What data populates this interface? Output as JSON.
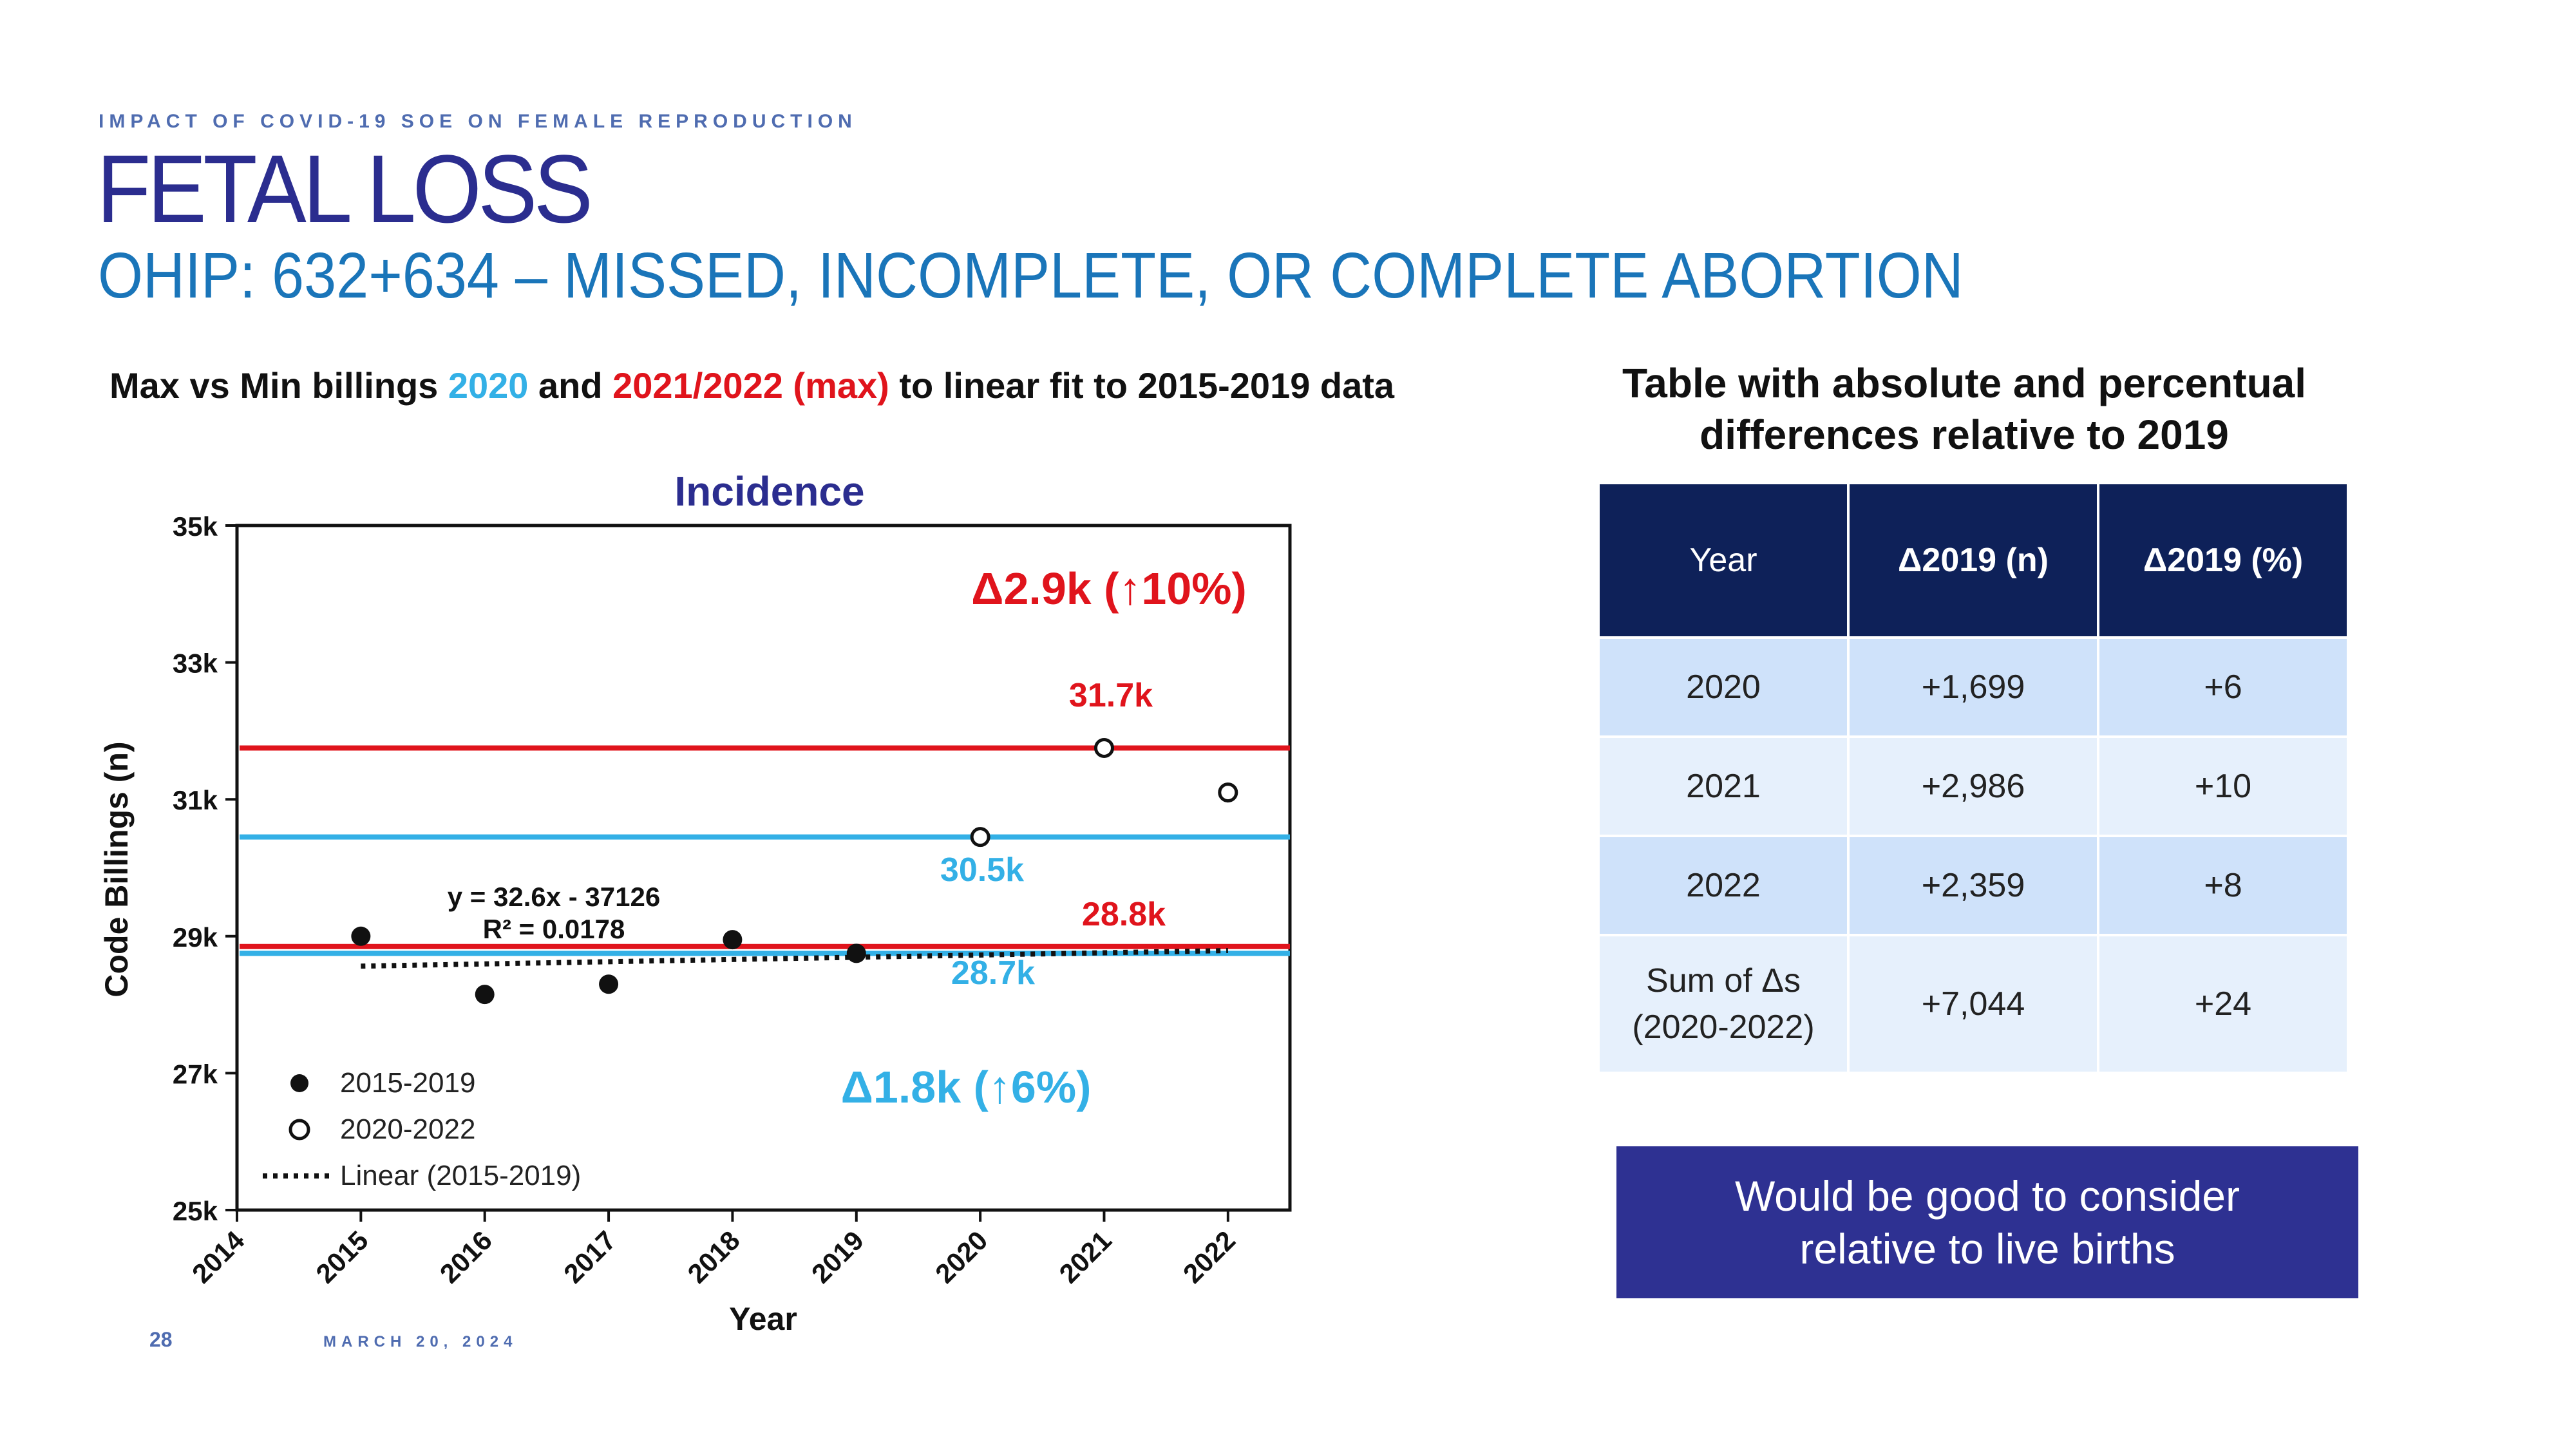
{
  "header": {
    "kicker": "IMPACT OF COVID-19 SOE ON FEMALE REPRODUCTION",
    "title": "FETAL LOSS",
    "subtitle": "OHIP: 632+634 – MISSED, INCOMPLETE, OR COMPLETE ABORTION"
  },
  "chart_caption": {
    "part1": "Max vs Min billings ",
    "part2": "2020",
    "part3": " and ",
    "part4": "2021/2022 (max)",
    "part5": " to linear fit to 2015-2019 data"
  },
  "chart_data": {
    "type": "scatter",
    "title": "Incidence",
    "xlabel": "Year",
    "ylabel": "Code Billings (n)",
    "xlim": [
      2014,
      2022.5
    ],
    "ylim": [
      25000,
      35000
    ],
    "x_ticks": [
      "2014",
      "2015",
      "2016",
      "2017",
      "2018",
      "2019",
      "2020",
      "2021",
      "2022"
    ],
    "y_ticks": [
      "25k",
      "27k",
      "29k",
      "31k",
      "33k",
      "35k"
    ],
    "series": [
      {
        "name": "2015-2019",
        "marker": "filled-circle",
        "x": [
          2015,
          2016,
          2017,
          2018,
          2019
        ],
        "y": [
          29000,
          28150,
          28300,
          28950,
          28750
        ]
      },
      {
        "name": "2020-2022",
        "marker": "open-circle",
        "x": [
          2020,
          2021,
          2022
        ],
        "y": [
          30450,
          31750,
          31100
        ]
      }
    ],
    "trendline": {
      "name": "Linear (2015-2019)",
      "slope": 32.6,
      "intercept": -37126,
      "x_range": [
        2015,
        2022
      ],
      "equation": "y = 32.6x - 37126",
      "r2": "R² = 0.0178"
    },
    "reference_lines": [
      {
        "y": 31750,
        "color": "#e0141c",
        "label": "31.7k"
      },
      {
        "y": 30450,
        "color": "#33b0e6",
        "label": "30.5k"
      },
      {
        "y": 28850,
        "color": "#e0141c",
        "label": "28.8k"
      },
      {
        "y": 28750,
        "color": "#33b0e6",
        "label": "28.7k"
      }
    ],
    "annotations": [
      {
        "text": "Δ2.9k (↑10%)",
        "color": "#e0141c"
      },
      {
        "text": "Δ1.8k (↑6%)",
        "color": "#33b0e6"
      }
    ],
    "legend_position": "bottom-left",
    "grid": false
  },
  "table": {
    "heading": "Table with absolute and percentual differences relative to 2019",
    "columns": [
      "Year",
      "Δ2019 (n)",
      "Δ2019 (%)"
    ],
    "rows": [
      {
        "year": "2020",
        "n": "+1,699",
        "pct": "+6"
      },
      {
        "year": "2021",
        "n": "+2,986",
        "pct": "+10"
      },
      {
        "year": "2022",
        "n": "+2,359",
        "pct": "+8"
      }
    ],
    "sum_row": {
      "year_line1": "Sum of Δs",
      "year_line2": "(2020-2022)",
      "n": "+7,044",
      "pct": "+24"
    }
  },
  "note": "Would be good to consider relative to live births",
  "footer": {
    "page": "28",
    "date": "MARCH 20, 2024"
  },
  "colors": {
    "title": "#2b2d8f",
    "subtitle": "#1a75b9",
    "red": "#e0141c",
    "blue": "#33b0e6",
    "table_header": "#0e2159",
    "note_box": "#2e3192"
  }
}
